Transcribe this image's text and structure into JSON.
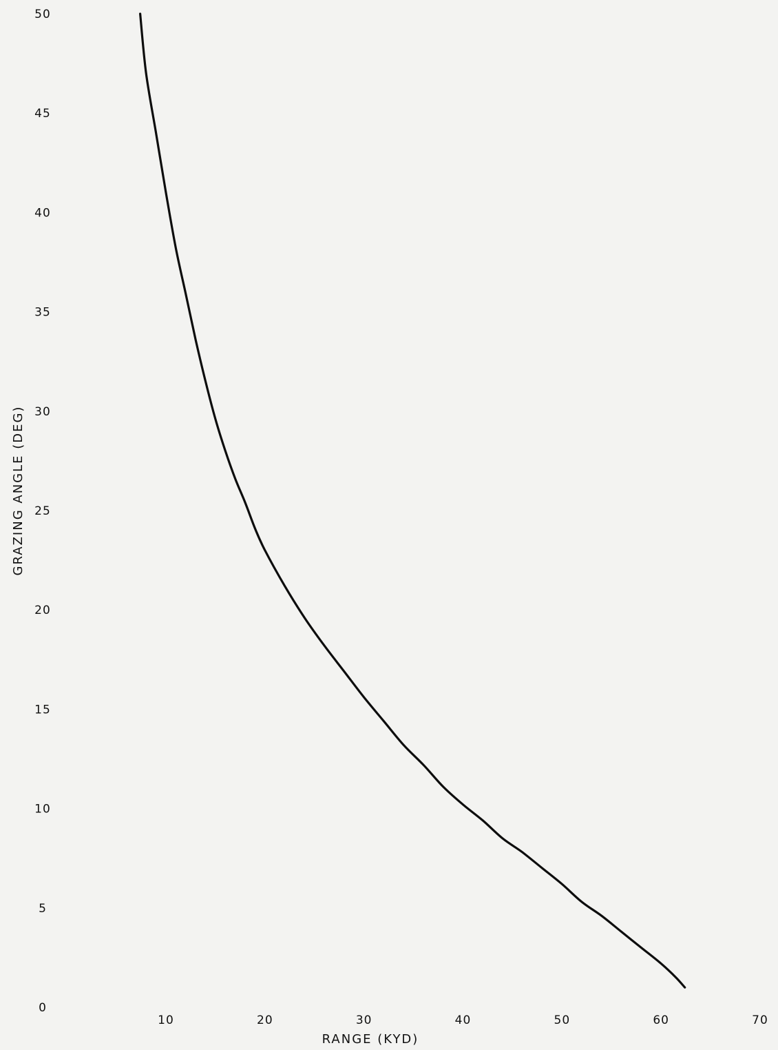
{
  "chart_data": {
    "type": "line",
    "title": "",
    "xlabel": "RANGE (KYD)",
    "ylabel": "GRAZING ANGLE (DEG)",
    "xlim": [
      0,
      70
    ],
    "ylim": [
      0,
      50
    ],
    "x_ticks": [
      "10",
      "20",
      "30",
      "40",
      "50",
      "60",
      "70"
    ],
    "y_ticks": [
      "0",
      "5",
      "10",
      "15",
      "20",
      "25",
      "30",
      "35",
      "40",
      "45",
      "50"
    ],
    "grid": false,
    "series": [
      {
        "x": [
          7.4,
          8.0,
          9.0,
          10.0,
          11.0,
          12.0,
          13.0,
          14.0,
          15.0,
          16.0,
          17.0,
          18.0,
          19.0,
          20.0,
          22.0,
          24.0,
          26.0,
          28.0,
          30.0,
          32.0,
          34.0,
          36.0,
          38.0,
          40.0,
          42.0,
          44.0,
          46.0,
          48.0,
          50.0,
          52.0,
          54.0,
          56.0,
          58.0,
          60.0,
          61.5,
          62.4
        ],
        "y": [
          50.0,
          47.0,
          44.0,
          41.0,
          38.2,
          35.9,
          33.6,
          31.5,
          29.6,
          28.0,
          26.6,
          25.4,
          24.1,
          23.0,
          21.2,
          19.6,
          18.2,
          16.9,
          15.6,
          14.4,
          13.2,
          12.2,
          11.1,
          10.2,
          9.4,
          8.5,
          7.8,
          7.0,
          6.2,
          5.3,
          4.6,
          3.8,
          3.0,
          2.2,
          1.5,
          1.0
        ]
      }
    ]
  }
}
